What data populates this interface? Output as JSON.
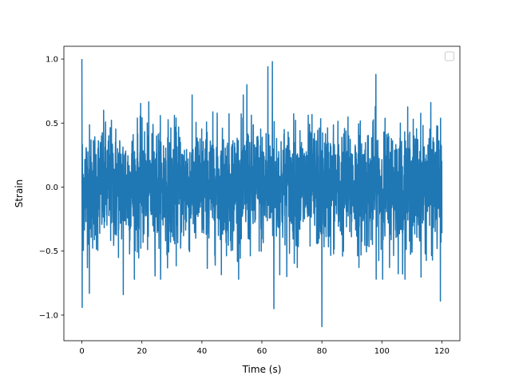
{
  "chart_data": {
    "type": "line",
    "title": "",
    "xlabel": "Time (s)",
    "ylabel": "Strain",
    "xlim": [
      -6,
      126
    ],
    "ylim": [
      -1.2,
      1.1
    ],
    "xticks": [
      0,
      20,
      40,
      60,
      80,
      100,
      120
    ],
    "xtick_labels": [
      "0",
      "20",
      "40",
      "60",
      "80",
      "100",
      "120"
    ],
    "yticks": [
      -1.0,
      -0.5,
      0.0,
      0.5,
      1.0
    ],
    "ytick_labels": [
      "−1.0",
      "−0.5",
      "0.0",
      "0.5",
      "1.0"
    ],
    "grid": false,
    "legend": {
      "placement": "upper-right",
      "entries": []
    },
    "series": [
      {
        "color": "#1f77b4",
        "x_range": [
          0,
          120
        ],
        "notes_peaks": [
          {
            "x": 0.0,
            "y": 1.0
          },
          {
            "x": 0.1,
            "y": -0.94
          },
          {
            "x": 2.5,
            "y": -0.83
          },
          {
            "x": 13.8,
            "y": -0.84
          },
          {
            "x": 55.0,
            "y": 0.8
          },
          {
            "x": 62.0,
            "y": 0.94
          },
          {
            "x": 63.5,
            "y": 0.98
          },
          {
            "x": 64.0,
            "y": -0.95
          },
          {
            "x": 80.0,
            "y": -1.09
          },
          {
            "x": 98.0,
            "y": 0.88
          },
          {
            "x": 119.5,
            "y": -0.89
          }
        ]
      }
    ]
  }
}
